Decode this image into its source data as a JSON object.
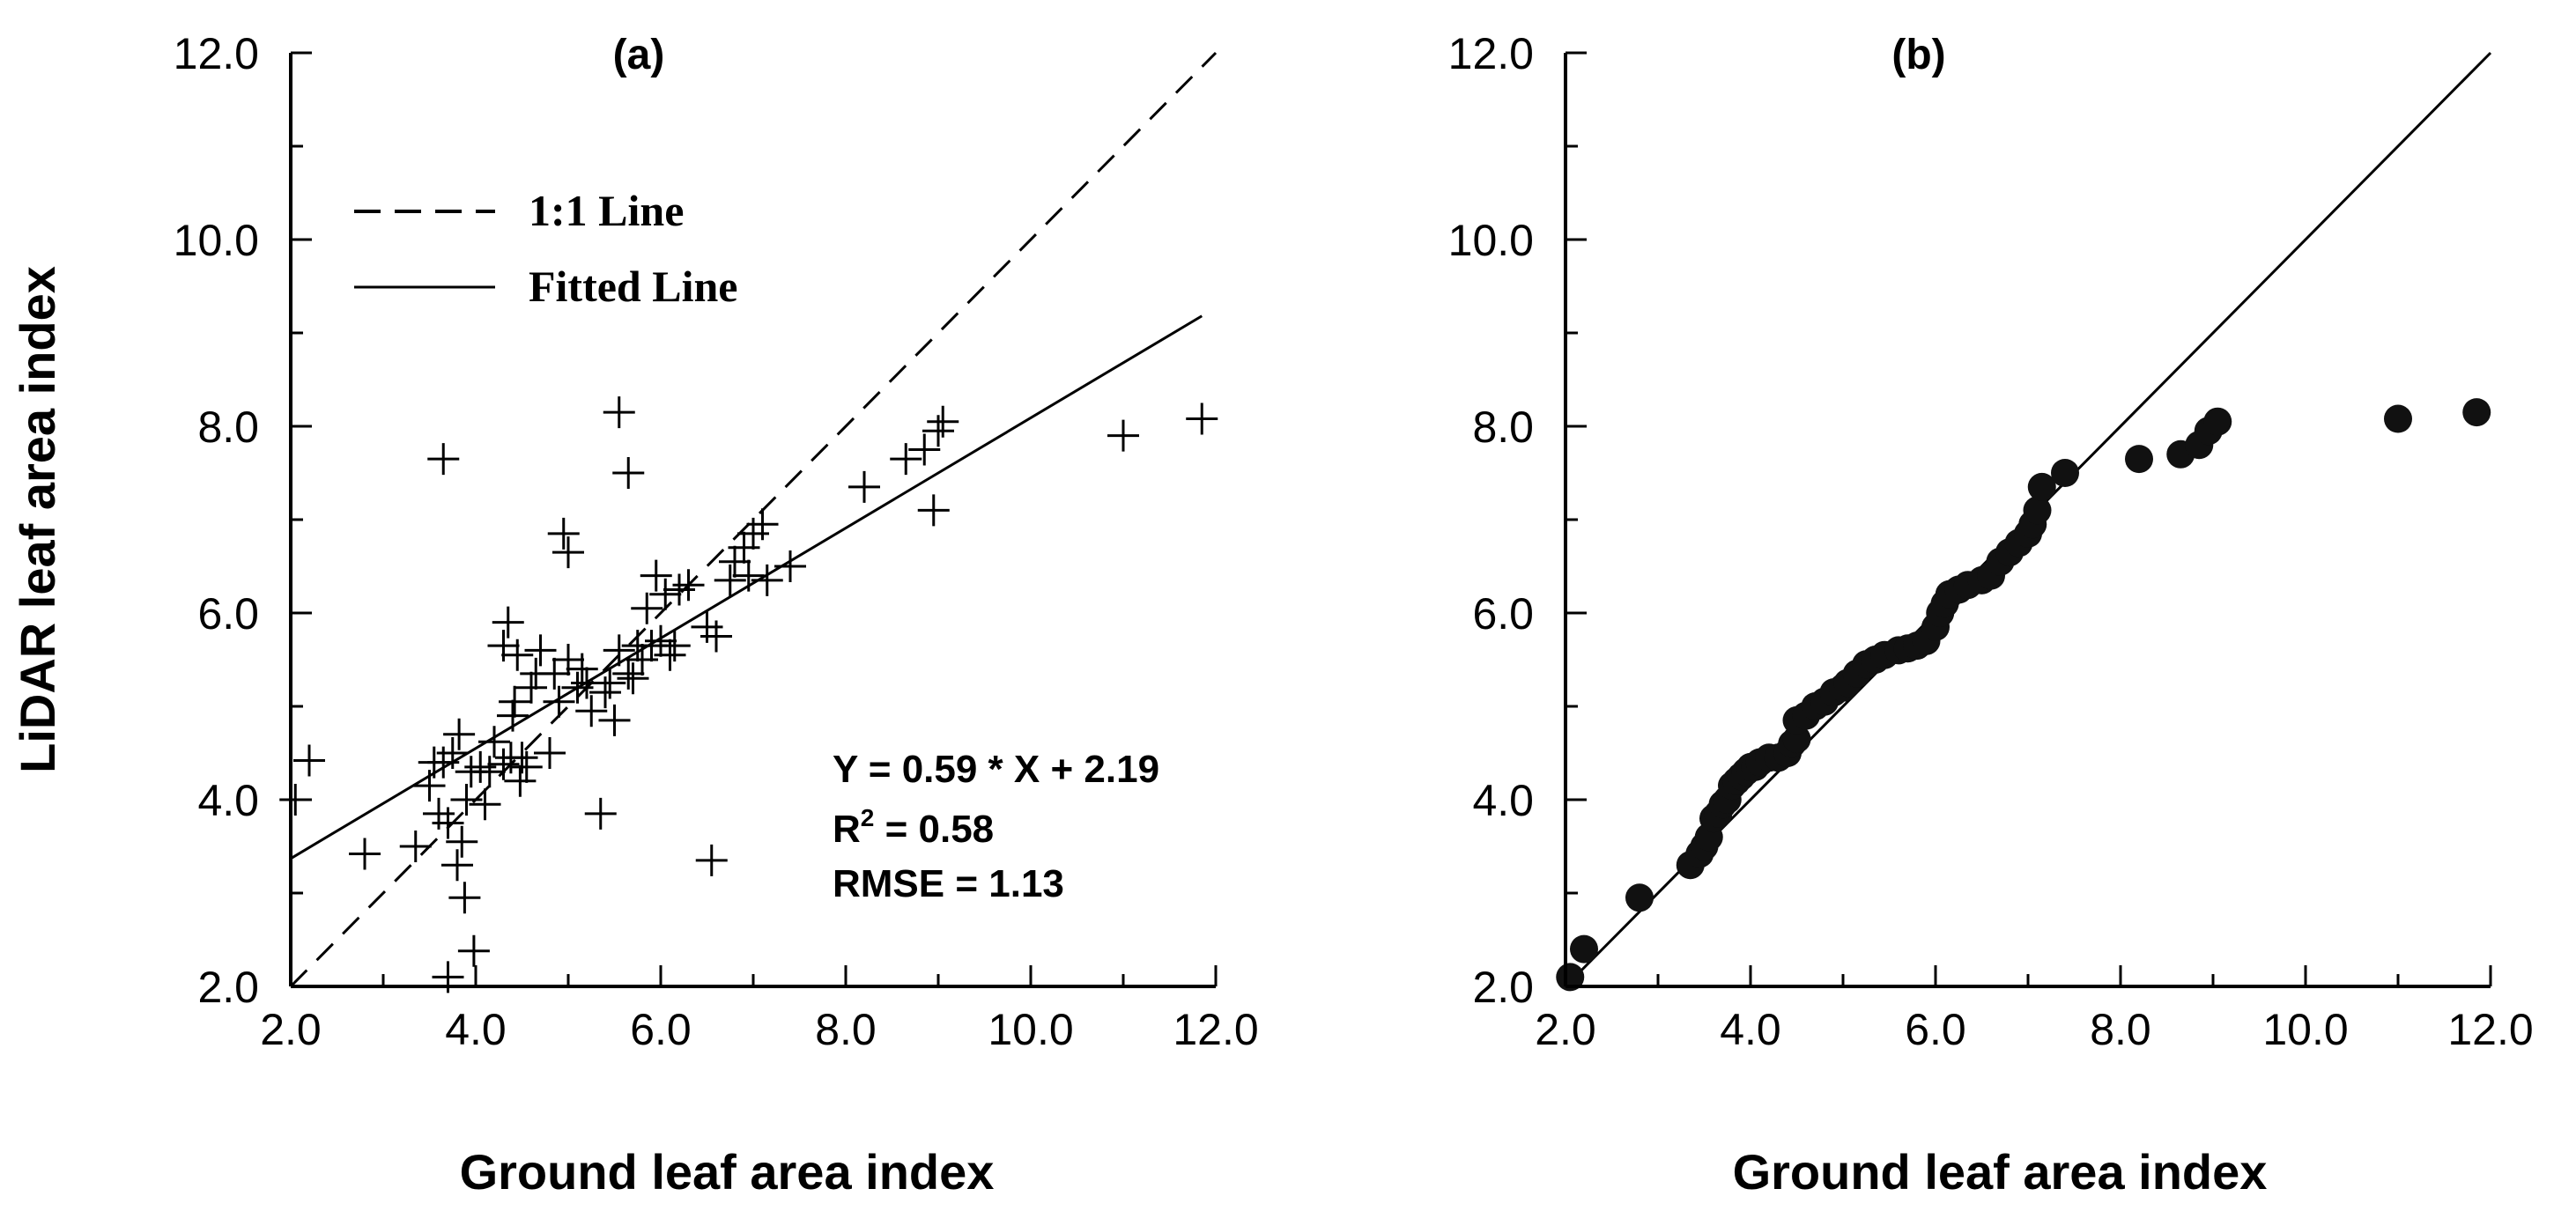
{
  "chart_data": [
    {
      "id": "a",
      "type": "scatter",
      "title": "(a)",
      "xlabel": "Ground leaf area index",
      "ylabel": "LiDAR leaf area index",
      "xlim": [
        2.0,
        12.0
      ],
      "ylim": [
        2.0,
        12.0
      ],
      "xticks": [
        "2.0",
        "4.0",
        "6.0",
        "8.0",
        "10.0",
        "12.0"
      ],
      "yticks": [
        "2.0",
        "4.0",
        "6.0",
        "8.0",
        "10.0",
        "12.0"
      ],
      "marker": "plus",
      "grid": false,
      "legend": {
        "position": "top-left",
        "entries": [
          {
            "label": "1:1 Line",
            "style": "dashed"
          },
          {
            "label": "Fitted Line",
            "style": "solid"
          }
        ]
      },
      "lines": {
        "one_to_one": {
          "x": [
            2.0,
            12.0
          ],
          "y": [
            2.0,
            12.0
          ]
        },
        "fitted": {
          "x": [
            2.0,
            11.85
          ],
          "slope": 0.59,
          "intercept": 2.19
        }
      },
      "stats": {
        "equation": "Y = 0.59 * X + 2.19",
        "r2_prefix": "R",
        "r2_sup": "2",
        "r2_suffix": " = 0.58",
        "rmse": "RMSE = 1.13"
      },
      "points": [
        [
          2.05,
          4.0
        ],
        [
          2.2,
          4.42
        ],
        [
          2.8,
          3.42
        ],
        [
          3.35,
          3.5
        ],
        [
          3.5,
          4.15
        ],
        [
          3.55,
          4.4
        ],
        [
          3.6,
          3.85
        ],
        [
          3.65,
          4.4
        ],
        [
          3.7,
          3.75
        ],
        [
          3.65,
          7.65
        ],
        [
          3.7,
          2.1
        ],
        [
          3.75,
          4.5
        ],
        [
          3.8,
          3.3
        ],
        [
          3.82,
          4.7
        ],
        [
          3.85,
          3.55
        ],
        [
          3.88,
          2.95
        ],
        [
          3.9,
          4.0
        ],
        [
          3.95,
          4.3
        ],
        [
          3.98,
          2.38
        ],
        [
          4.05,
          4.35
        ],
        [
          4.1,
          3.95
        ],
        [
          4.15,
          4.3
        ],
        [
          4.2,
          4.62
        ],
        [
          4.3,
          4.38
        ],
        [
          4.3,
          5.65
        ],
        [
          4.35,
          5.9
        ],
        [
          4.38,
          4.45
        ],
        [
          4.4,
          4.9
        ],
        [
          4.42,
          5.05
        ],
        [
          4.45,
          5.55
        ],
        [
          4.48,
          4.2
        ],
        [
          4.5,
          4.45
        ],
        [
          4.55,
          4.35
        ],
        [
          4.6,
          5.2
        ],
        [
          4.65,
          5.35
        ],
        [
          4.7,
          5.6
        ],
        [
          4.8,
          4.5
        ],
        [
          4.85,
          5.35
        ],
        [
          4.9,
          5.05
        ],
        [
          4.95,
          6.85
        ],
        [
          5.0,
          5.5
        ],
        [
          5.0,
          6.65
        ],
        [
          5.1,
          5.2
        ],
        [
          5.15,
          5.4
        ],
        [
          5.2,
          5.25
        ],
        [
          5.25,
          4.95
        ],
        [
          5.35,
          3.85
        ],
        [
          5.4,
          5.15
        ],
        [
          5.45,
          5.25
        ],
        [
          5.5,
          4.85
        ],
        [
          5.55,
          5.6
        ],
        [
          5.55,
          8.15
        ],
        [
          5.65,
          7.5
        ],
        [
          5.65,
          5.35
        ],
        [
          5.7,
          5.3
        ],
        [
          5.75,
          5.65
        ],
        [
          5.8,
          5.5
        ],
        [
          5.85,
          6.05
        ],
        [
          5.9,
          5.65
        ],
        [
          5.95,
          6.4
        ],
        [
          6.0,
          5.7
        ],
        [
          6.05,
          6.2
        ],
        [
          6.1,
          5.55
        ],
        [
          6.15,
          5.65
        ],
        [
          6.2,
          6.25
        ],
        [
          6.3,
          6.3
        ],
        [
          6.5,
          5.85
        ],
        [
          6.55,
          3.35
        ],
        [
          6.6,
          5.75
        ],
        [
          6.75,
          6.35
        ],
        [
          6.8,
          6.55
        ],
        [
          6.9,
          6.7
        ],
        [
          6.95,
          6.4
        ],
        [
          7.0,
          6.85
        ],
        [
          7.1,
          6.95
        ],
        [
          7.15,
          6.35
        ],
        [
          7.4,
          6.5
        ],
        [
          8.2,
          7.35
        ],
        [
          8.65,
          7.65
        ],
        [
          8.85,
          7.75
        ],
        [
          8.95,
          7.1
        ],
        [
          9.0,
          7.95
        ],
        [
          9.05,
          8.05
        ],
        [
          11.0,
          7.9
        ],
        [
          11.85,
          8.08
        ]
      ]
    },
    {
      "id": "b",
      "type": "scatter",
      "title": "(b)",
      "xlabel": "Ground leaf area index",
      "ylabel": "",
      "xlim": [
        2.0,
        12.0
      ],
      "ylim": [
        2.0,
        12.0
      ],
      "xticks": [
        "2.0",
        "4.0",
        "6.0",
        "8.0",
        "10.0",
        "12.0"
      ],
      "yticks": [
        "2.0",
        "4.0",
        "6.0",
        "8.0",
        "10.0",
        "12.0"
      ],
      "marker": "filled-circle",
      "grid": false,
      "lines": {
        "one_to_one": {
          "x": [
            2.0,
            12.0
          ],
          "y": [
            2.0,
            12.0
          ]
        }
      },
      "points": [
        [
          2.05,
          2.1
        ],
        [
          2.2,
          2.4
        ],
        [
          2.8,
          2.95
        ],
        [
          3.35,
          3.3
        ],
        [
          3.45,
          3.42
        ],
        [
          3.5,
          3.5
        ],
        [
          3.55,
          3.6
        ],
        [
          3.6,
          3.8
        ],
        [
          3.65,
          3.85
        ],
        [
          3.7,
          3.95
        ],
        [
          3.75,
          4.0
        ],
        [
          3.8,
          4.15
        ],
        [
          3.85,
          4.2
        ],
        [
          3.9,
          4.25
        ],
        [
          3.95,
          4.3
        ],
        [
          4.0,
          4.35
        ],
        [
          4.05,
          4.35
        ],
        [
          4.1,
          4.4
        ],
        [
          4.2,
          4.45
        ],
        [
          4.3,
          4.45
        ],
        [
          4.4,
          4.5
        ],
        [
          4.45,
          4.6
        ],
        [
          4.5,
          4.65
        ],
        [
          4.5,
          4.85
        ],
        [
          4.6,
          4.9
        ],
        [
          4.7,
          5.0
        ],
        [
          4.8,
          5.05
        ],
        [
          4.9,
          5.15
        ],
        [
          5.0,
          5.2
        ],
        [
          5.05,
          5.25
        ],
        [
          5.15,
          5.35
        ],
        [
          5.25,
          5.45
        ],
        [
          5.35,
          5.5
        ],
        [
          5.45,
          5.55
        ],
        [
          5.6,
          5.6
        ],
        [
          5.7,
          5.62
        ],
        [
          5.8,
          5.65
        ],
        [
          5.9,
          5.7
        ],
        [
          6.0,
          5.85
        ],
        [
          6.05,
          6.0
        ],
        [
          6.1,
          6.1
        ],
        [
          6.15,
          6.2
        ],
        [
          6.25,
          6.25
        ],
        [
          6.35,
          6.3
        ],
        [
          6.5,
          6.35
        ],
        [
          6.6,
          6.4
        ],
        [
          6.7,
          6.55
        ],
        [
          6.8,
          6.65
        ],
        [
          6.9,
          6.75
        ],
        [
          7.0,
          6.85
        ],
        [
          7.05,
          6.95
        ],
        [
          7.1,
          7.1
        ],
        [
          7.15,
          7.35
        ],
        [
          7.4,
          7.5
        ],
        [
          8.2,
          7.65
        ],
        [
          8.65,
          7.7
        ],
        [
          8.85,
          7.8
        ],
        [
          8.95,
          7.95
        ],
        [
          9.05,
          8.05
        ],
        [
          11.0,
          8.08
        ],
        [
          11.85,
          8.15
        ]
      ]
    }
  ]
}
